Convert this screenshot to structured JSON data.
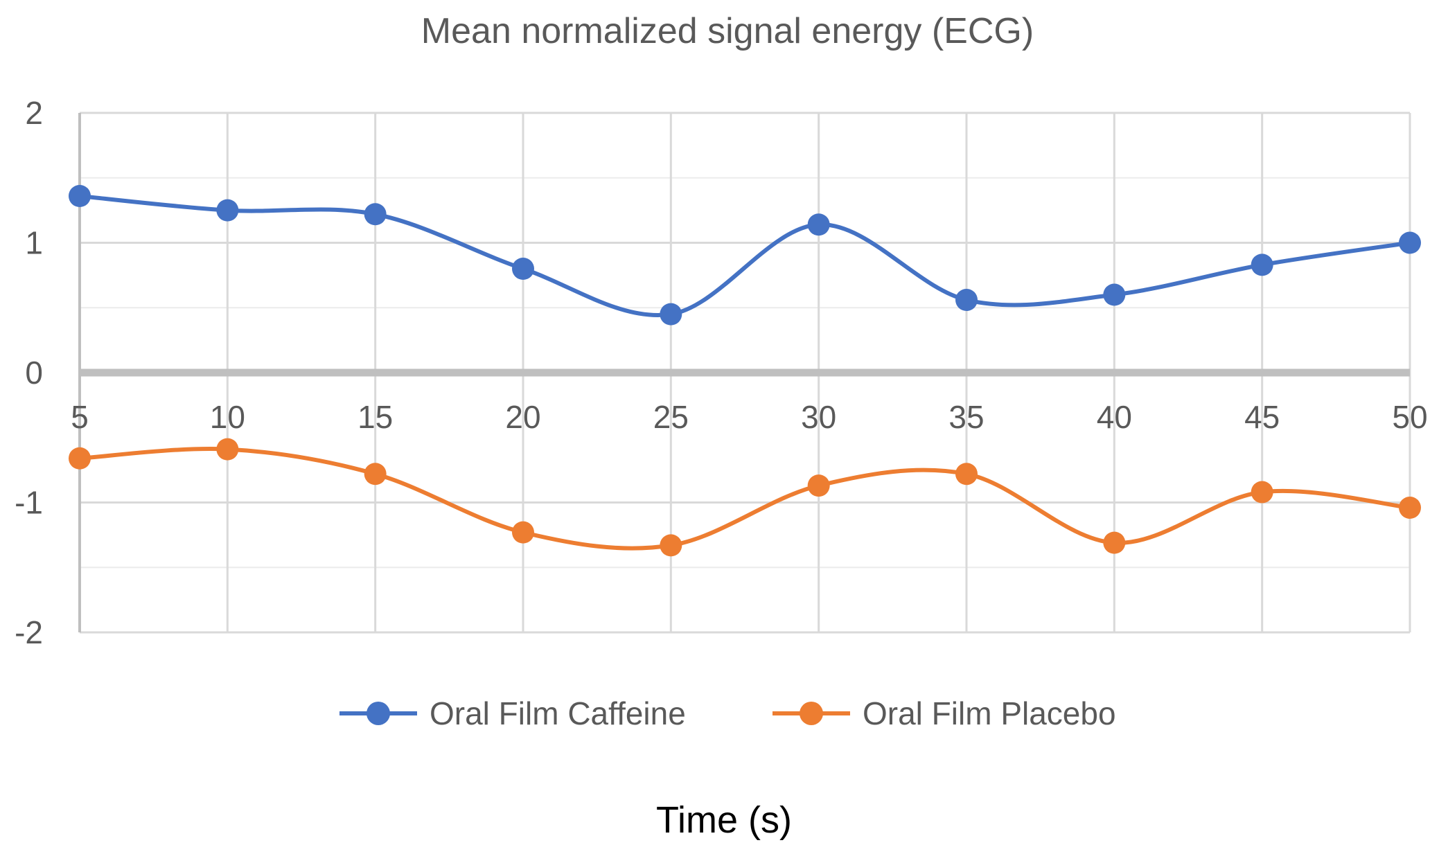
{
  "chart_data": {
    "type": "line",
    "title": "Mean normalized signal energy (ECG)",
    "xlabel": "Time (s)",
    "ylabel": "",
    "x": [
      5,
      10,
      15,
      20,
      25,
      30,
      35,
      40,
      45,
      50
    ],
    "x_tick_labels": [
      "5",
      "10",
      "15",
      "20",
      "25",
      "30",
      "35",
      "40",
      "45",
      "50"
    ],
    "ylim": [
      -2,
      2
    ],
    "y_ticks": [
      2,
      1,
      0,
      -1,
      -2
    ],
    "y_tick_labels": [
      "2",
      "1",
      "0",
      "-1",
      "-2"
    ],
    "minor_grid_y": [
      1.5,
      0.5,
      -1.5
    ],
    "grid": true,
    "smooth": true,
    "legend_position": "bottom",
    "series": [
      {
        "name": "Oral Film Caffeine",
        "color": "#4472C4",
        "values": [
          1.36,
          1.25,
          1.22,
          0.8,
          0.45,
          1.14,
          0.56,
          0.6,
          0.83,
          1.0
        ]
      },
      {
        "name": "Oral Film Placebo",
        "color": "#ED7D31",
        "values": [
          -0.66,
          -0.59,
          -0.78,
          -1.23,
          -1.33,
          -0.87,
          -0.78,
          -1.31,
          -0.92,
          -1.04
        ]
      }
    ],
    "colors": {
      "grid": "#d9d9d9",
      "zero_axis": "#bfbfbf",
      "text": "#595959",
      "axis_title": "#000000"
    }
  }
}
